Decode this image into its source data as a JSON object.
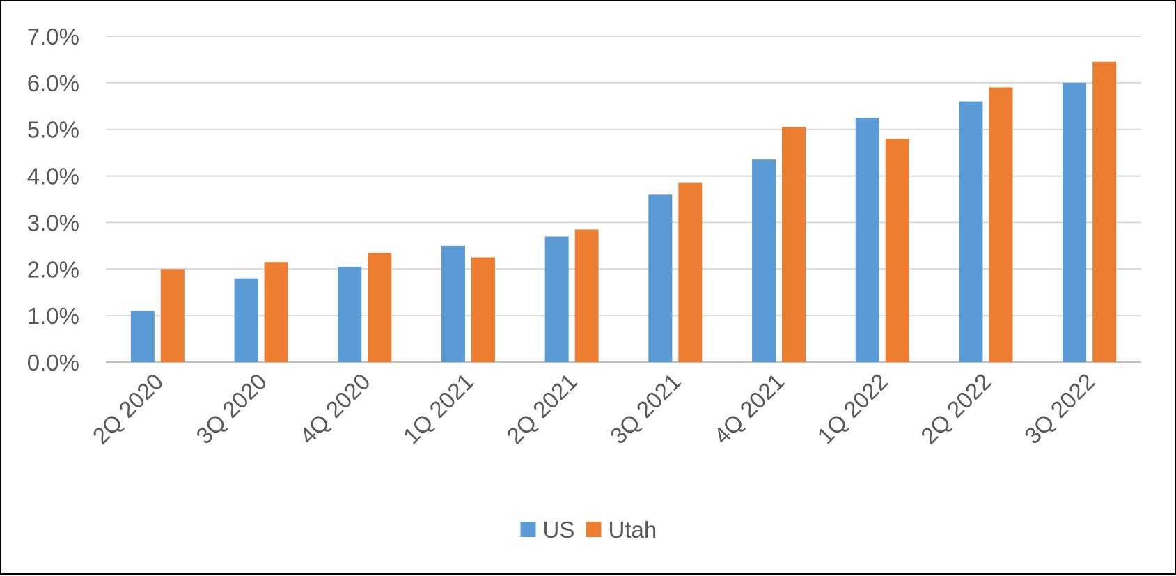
{
  "chart_data": {
    "type": "bar",
    "title": "",
    "xlabel": "",
    "ylabel": "",
    "categories": [
      "2Q 2020",
      "3Q 2020",
      "4Q 2020",
      "1Q 2021",
      "2Q 2021",
      "3Q 2021",
      "4Q 2021",
      "1Q 2022",
      "2Q 2022",
      "3Q 2022"
    ],
    "series": [
      {
        "name": "US",
        "color": "#5B9BD5",
        "values": [
          1.1,
          1.8,
          2.05,
          2.5,
          2.7,
          3.6,
          4.35,
          5.25,
          5.6,
          6.0
        ]
      },
      {
        "name": "Utah",
        "color": "#ED7D31",
        "values": [
          2.0,
          2.15,
          2.35,
          2.25,
          2.85,
          3.85,
          5.05,
          4.8,
          5.9,
          6.45
        ]
      }
    ],
    "ylim": [
      0,
      7
    ],
    "yticks": [
      0,
      1,
      2,
      3,
      4,
      5,
      6,
      7
    ],
    "ytick_labels": [
      "0.0%",
      "1.0%",
      "2.0%",
      "3.0%",
      "4.0%",
      "5.0%",
      "6.0%",
      "7.0%"
    ],
    "grid": true,
    "legend_position": "bottom"
  }
}
